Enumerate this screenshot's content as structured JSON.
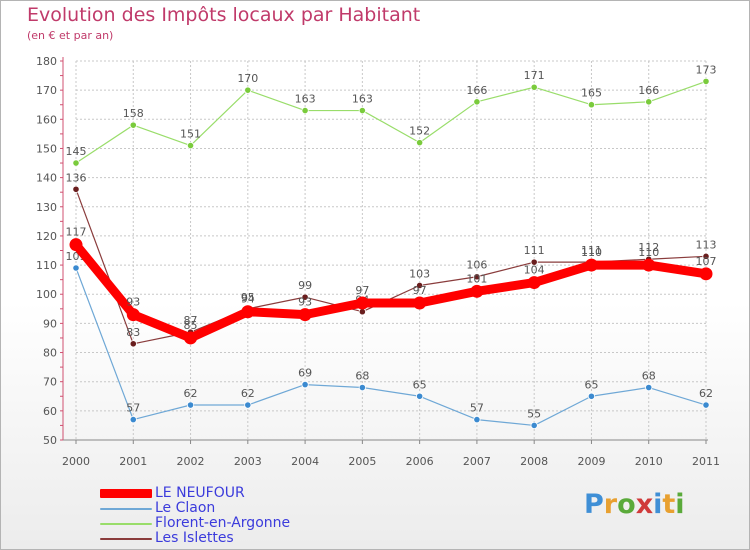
{
  "header": {
    "title": "Evolution des Impôts locaux par Habitant",
    "subtitle": "(en € et par an)"
  },
  "logo": {
    "letters": [
      "P",
      "r",
      "o",
      "x",
      "i",
      "t",
      "i"
    ],
    "colors": [
      "#3f8fd6",
      "#e8a030",
      "#5aaa3a",
      "#d03a3a",
      "#3f8fd6",
      "#e8a030",
      "#5aaa3a"
    ]
  },
  "chart_data": {
    "type": "line",
    "title": "Evolution des Impôts locaux par Habitant",
    "subtitle": "(en € et par an)",
    "xlabel": "",
    "ylabel": "",
    "categories": [
      "2000",
      "2001",
      "2002",
      "2003",
      "2004",
      "2005",
      "2006",
      "2007",
      "2008",
      "2009",
      "2010",
      "2011"
    ],
    "yticks": [
      50,
      60,
      70,
      80,
      90,
      100,
      110,
      120,
      130,
      140,
      150,
      160,
      170,
      180
    ],
    "ylim": [
      50,
      180
    ],
    "grid": "horizontal dashed",
    "legend_position": "bottom-left",
    "series": [
      {
        "name": "Florent-en-Argonne",
        "color": "#99dd6a",
        "marker": "#7acb3c",
        "weight": "thin",
        "values": [
          145,
          158,
          151,
          170,
          163,
          163,
          152,
          166,
          171,
          165,
          166,
          173
        ],
        "labels": [
          "145",
          "158",
          "151",
          "170",
          "163",
          "163",
          "152",
          "166",
          "171",
          "165",
          "166",
          "173"
        ]
      },
      {
        "name": "Le Claon",
        "color": "#6fa8d6",
        "marker": "#3b8ad0",
        "weight": "thin",
        "values": [
          109,
          57,
          62,
          62,
          69,
          68,
          65,
          57,
          55,
          65,
          68,
          62
        ],
        "labels": [
          "109",
          "57",
          "62",
          "62",
          "69",
          "68",
          "65",
          "57",
          "55",
          "65",
          "68",
          "62"
        ]
      },
      {
        "name": "Les Islettes",
        "color": "#8a3c3c",
        "marker": "#6a1e1e",
        "weight": "thin",
        "values": [
          136,
          83,
          87,
          95,
          99,
          94,
          103,
          106,
          111,
          111,
          112,
          113
        ],
        "labels": [
          "136",
          "83",
          "87",
          "95",
          "99",
          "94",
          "103",
          "106",
          "111",
          "111",
          "112",
          "113"
        ]
      },
      {
        "name": "LE NEUFOUR",
        "color": "#ff0000",
        "marker": "#ff0000",
        "weight": "thick",
        "values": [
          117,
          93,
          85,
          94,
          93,
          97,
          97,
          101,
          104,
          110,
          110,
          107
        ],
        "labels": [
          "117",
          "93",
          "85",
          "94",
          "93",
          "97",
          "97",
          "101",
          "104",
          "110",
          "110",
          "107"
        ]
      }
    ],
    "legend": [
      "LE NEUFOUR",
      "Le Claon",
      "Florent-en-Argonne",
      "Les Islettes"
    ]
  }
}
